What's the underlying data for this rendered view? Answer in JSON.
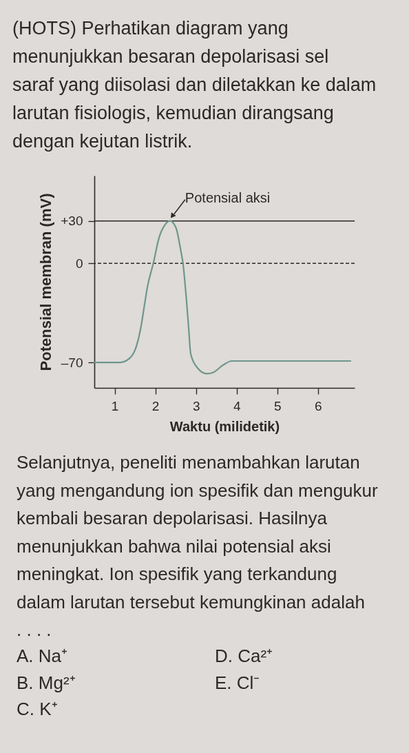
{
  "chart_data": {
    "type": "line",
    "title": "(HOTS) Perhatikan diagram yang\nmenunjukkan besaran depolarisasi sel\nsaraf yang diisolasi dan diletakkan ke dalam\nlarutan fisiologis, kemudian dirangsang\ndengan kejutan listrik.",
    "xlabel": "Waktu (milidetik)",
    "ylabel": "Potensial membran (mV)",
    "x": [
      0.5,
      1.13,
      1.37,
      1.54,
      1.64,
      1.73,
      1.81,
      1.95,
      2.09,
      2.23,
      2.36,
      2.51,
      2.62,
      2.68,
      2.76,
      2.82,
      2.87,
      3.04,
      3.26,
      3.43,
      3.66,
      3.88,
      4.05,
      6.8
    ],
    "values": [
      -70,
      -70,
      -67,
      -58,
      -46,
      -30,
      -16,
      0,
      18,
      27,
      30,
      25,
      10,
      0,
      -24,
      -46,
      -64,
      -74,
      -78,
      -77,
      -72,
      -69,
      -69,
      -69
    ],
    "color": "#6e968d",
    "xlim": [
      0.5,
      6.9
    ],
    "ylim": [
      -88,
      62
    ],
    "xticks": [
      1,
      2,
      3,
      4,
      5,
      6
    ],
    "yticks": [
      {
        "value": 30,
        "label": "+30"
      },
      0,
      {
        "value": -70,
        "label": "–70"
      }
    ],
    "ref_lines": [
      {
        "axis": "y",
        "value": 30,
        "line_style": "solid",
        "color": "#2c2828"
      },
      {
        "axis": "y",
        "value": 0,
        "line_style": "dashed",
        "color": "#2c2828"
      }
    ],
    "annotations": [
      {
        "text": "Potensial aksi",
        "x": 2.36,
        "y": 30
      },
      "Selanjutnya, peneliti menambahkan larutan\nyang mengandung ion spesifik dan mengukur\nkembali besaran depolarisasi. Hasilnya\nmenunjukkan bahwa nilai potensial aksi\nmeningkat. Ion spesifik yang terkandung\ndalam larutan tersebut kemungkinan adalah\n. . . .",
      "A. Na⁺",
      "B. Mg²⁺",
      "C. K⁺",
      "D. Ca²⁺",
      "E. Cl⁻"
    ]
  }
}
